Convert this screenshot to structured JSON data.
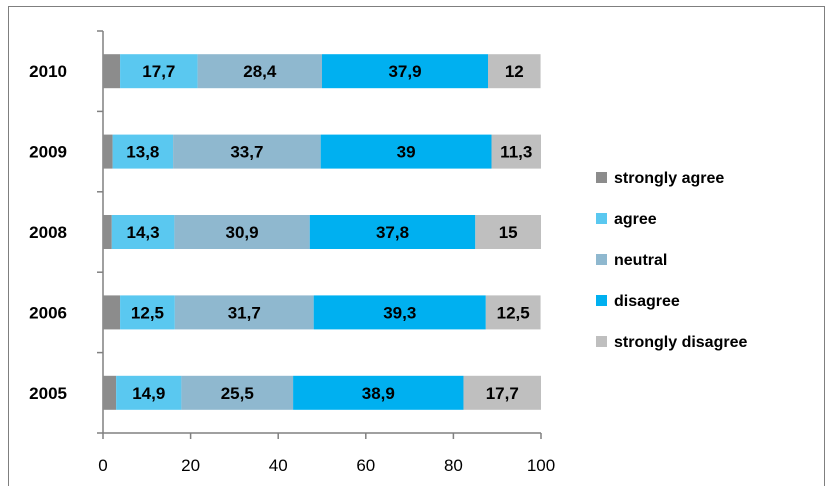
{
  "chart_data": {
    "type": "bar",
    "orientation": "horizontal",
    "stacked": true,
    "categories": [
      "2010",
      "2009",
      "2008",
      "2006",
      "2005"
    ],
    "series": [
      {
        "name": "strongly agree",
        "color": "#8c8c8c",
        "values": [
          3.9,
          2.2,
          2.0,
          3.9,
          3.0
        ]
      },
      {
        "name": "agree",
        "color": "#5ac8f0",
        "values": [
          17.7,
          13.8,
          14.3,
          12.5,
          14.9
        ]
      },
      {
        "name": "neutral",
        "color": "#8fb8cf",
        "values": [
          28.4,
          33.7,
          30.9,
          31.7,
          25.5
        ]
      },
      {
        "name": "disagree",
        "color": "#00b0f0",
        "values": [
          37.9,
          39,
          37.8,
          39.3,
          38.9
        ]
      },
      {
        "name": "strongly disagree",
        "color": "#bfbfbf",
        "values": [
          12,
          11.3,
          15,
          12.5,
          17.7
        ]
      }
    ],
    "data_labels": {
      "agree": [
        "17,7",
        "13,8",
        "14,3",
        "12,5",
        "14,9"
      ],
      "neutral": [
        "28,4",
        "33,7",
        "30,9",
        "31,7",
        "25,5"
      ],
      "disagree": [
        "37,9",
        "39",
        "37,8",
        "39,3",
        "38,9"
      ],
      "strongly disagree": [
        "12",
        "11,3",
        "15",
        "12,5",
        "17,7"
      ]
    },
    "xlim": [
      0,
      100
    ],
    "xticks": [
      "0",
      "20",
      "40",
      "60",
      "80",
      "100"
    ],
    "grid": false,
    "legend_position": "right"
  }
}
